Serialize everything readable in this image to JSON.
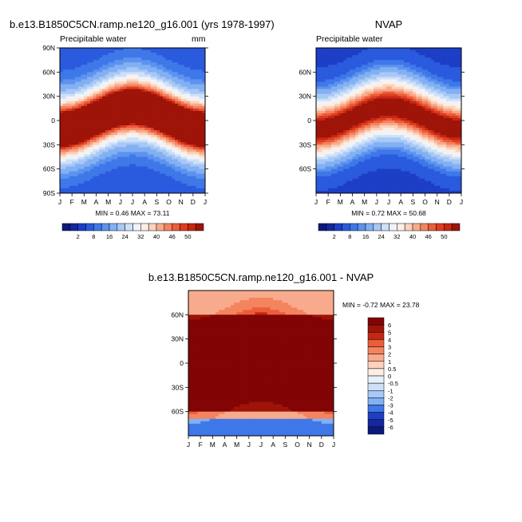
{
  "palette": [
    "#0b1a7a",
    "#14289c",
    "#1c3fc6",
    "#2a5ade",
    "#3f78e8",
    "#5d93ef",
    "#82b0f3",
    "#a8c8f6",
    "#cde0f8",
    "#eef4fb",
    "#fdeee4",
    "#fbd2bc",
    "#f8ab8c",
    "#f3845f",
    "#ec5d3a",
    "#df3c20",
    "#c62713",
    "#9e1409",
    "#820404"
  ],
  "chart_data": [
    {
      "type": "heatmap",
      "title": "b.e13.B1850C5CN.ramp.ne120_g16.001 (yrs 1978-1997)",
      "subtitle": "Precipitable water",
      "units": "mm",
      "x_ticks": [
        "J",
        "F",
        "M",
        "A",
        "M",
        "J",
        "J",
        "A",
        "S",
        "O",
        "N",
        "D",
        "J"
      ],
      "y_ticks": [
        "90N",
        "60N",
        "30N",
        "0",
        "30S",
        "60S",
        "90S"
      ],
      "stats": "MIN =  0.46 MAX =  73.11",
      "colorbar_labels": [
        "2",
        "8",
        "16",
        "24",
        "32",
        "40",
        "46",
        "50"
      ],
      "colorbar_levels": [
        2,
        4,
        6,
        8,
        10,
        12,
        16,
        20,
        24,
        28,
        32,
        36,
        40,
        43,
        46,
        48,
        50
      ],
      "value_range": [
        0.46,
        73.11
      ]
    },
    {
      "type": "heatmap",
      "title": "NVAP",
      "subtitle": "Precipitable water",
      "x_ticks": [
        "J",
        "F",
        "M",
        "A",
        "M",
        "J",
        "J",
        "A",
        "S",
        "O",
        "N",
        "D",
        "J"
      ],
      "y_ticks": [
        "60N",
        "30N",
        "0",
        "30S",
        "60S"
      ],
      "stats": "MIN =  0.72 MAX =  50.68",
      "colorbar_labels": [
        "2",
        "8",
        "16",
        "24",
        "32",
        "40",
        "46",
        "50"
      ],
      "colorbar_levels": [
        2,
        4,
        6,
        8,
        10,
        12,
        16,
        20,
        24,
        28,
        32,
        36,
        40,
        43,
        46,
        48,
        50
      ],
      "value_range": [
        0.72,
        50.68
      ]
    },
    {
      "type": "heatmap",
      "title": "b.e13.B1850C5CN.ramp.ne120_g16.001 - NVAP",
      "x_ticks": [
        "J",
        "F",
        "M",
        "A",
        "M",
        "J",
        "J",
        "A",
        "S",
        "O",
        "N",
        "D",
        "J"
      ],
      "y_ticks": [
        "60N",
        "30N",
        "0",
        "30S",
        "60S"
      ],
      "stats": "MIN = -0.72 MAX =  23.78",
      "colorbar_labels": [
        "6",
        "5",
        "4",
        "3",
        "2",
        "1",
        "0.5",
        "0",
        "-0.5",
        "-1",
        "-2",
        "-3",
        "-4",
        "-5",
        "-6"
      ],
      "colorbar_levels": [
        -6,
        -5,
        -4,
        -3,
        -2,
        -1,
        -0.5,
        0,
        0.5,
        1,
        2,
        3,
        4,
        5,
        6
      ],
      "value_range": [
        -0.72,
        23.78
      ]
    }
  ]
}
